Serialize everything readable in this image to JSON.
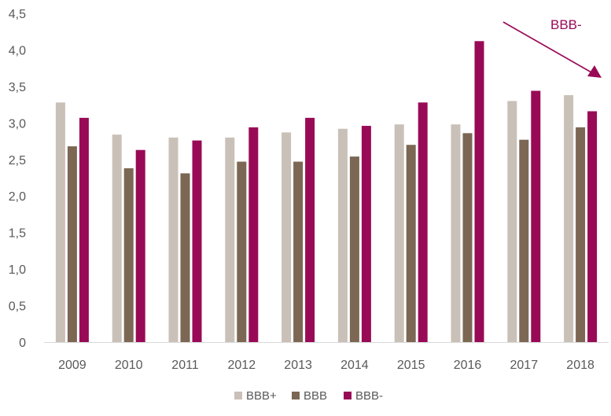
{
  "chart_data": {
    "type": "bar",
    "categories": [
      "2009",
      "2010",
      "2011",
      "2012",
      "2013",
      "2014",
      "2015",
      "2016",
      "2017",
      "2018"
    ],
    "series": [
      {
        "name": "BBB+",
        "color": "#c9c0b8",
        "values": [
          3.28,
          2.84,
          2.8,
          2.8,
          2.87,
          2.92,
          2.98,
          2.98,
          3.3,
          3.38
        ]
      },
      {
        "name": "BBB",
        "color": "#7b6753",
        "values": [
          2.68,
          2.38,
          2.31,
          2.47,
          2.47,
          2.54,
          2.7,
          2.86,
          2.77,
          2.94
        ]
      },
      {
        "name": "BBB-",
        "color": "#990a56",
        "values": [
          3.07,
          2.63,
          2.76,
          2.94,
          3.07,
          2.96,
          3.28,
          4.12,
          3.44,
          3.16
        ]
      }
    ],
    "y_ticks": [
      "0",
      "0,5",
      "1,0",
      "1,5",
      "2,0",
      "2,5",
      "3,0",
      "3,5",
      "4,0",
      "4,5"
    ],
    "ylim": [
      0,
      4.5
    ],
    "grid": false,
    "legend_position": "bottom",
    "annotation": {
      "text": "BBB-",
      "color": "#990a56",
      "arrow": "down-right"
    }
  }
}
